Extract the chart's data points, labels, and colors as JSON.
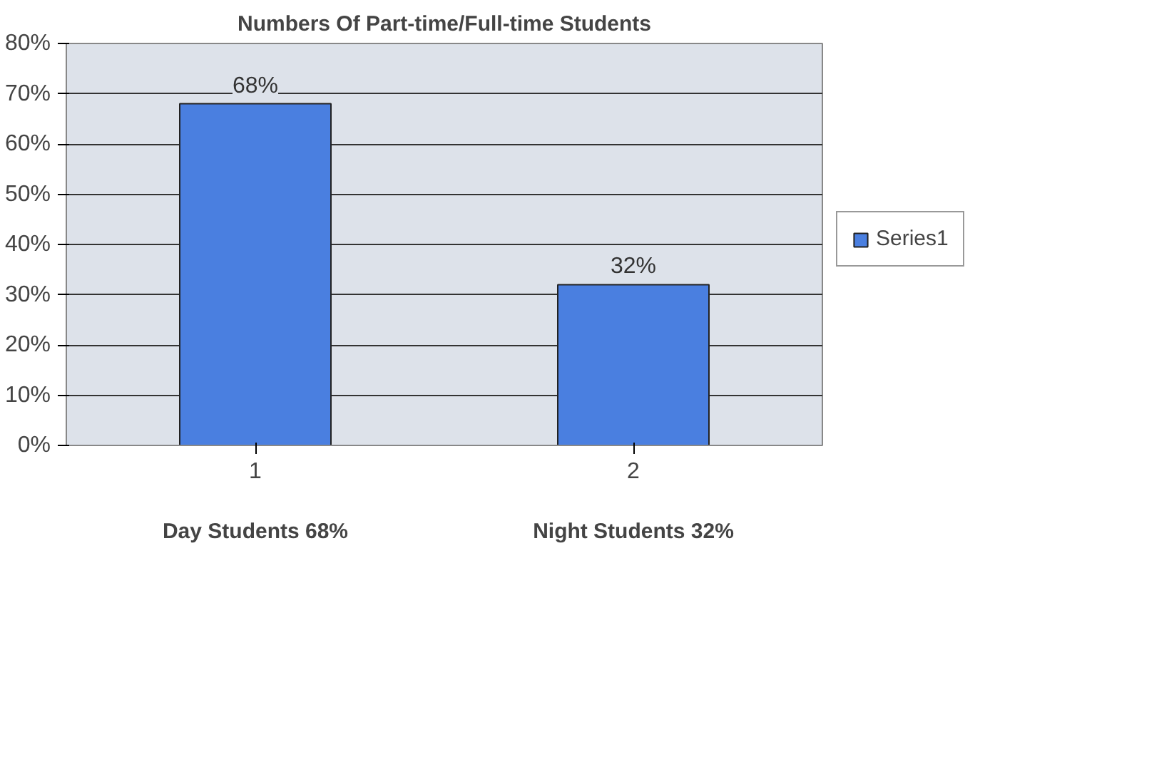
{
  "chart_data": {
    "type": "bar",
    "title": "Numbers Of Part-time/Full-time Students",
    "categories": [
      "1",
      "2"
    ],
    "series": [
      {
        "name": "Series1",
        "color": "#4a7fe0",
        "values": [
          68,
          32
        ],
        "value_labels": [
          "68%",
          "32%"
        ]
      }
    ],
    "ylim": [
      0,
      80
    ],
    "yticks": [
      {
        "value": 0,
        "label": "0%"
      },
      {
        "value": 10,
        "label": "10%"
      },
      {
        "value": 20,
        "label": "20%"
      },
      {
        "value": 30,
        "label": "30%"
      },
      {
        "value": 40,
        "label": "40%"
      },
      {
        "value": 50,
        "label": "50%"
      },
      {
        "value": 60,
        "label": "60%"
      },
      {
        "value": 70,
        "label": "70%"
      },
      {
        "value": 80,
        "label": "80%"
      }
    ],
    "grid": "y",
    "legend": "right",
    "annotations": [
      "Day Students 68%",
      "Night Students 32%"
    ]
  }
}
